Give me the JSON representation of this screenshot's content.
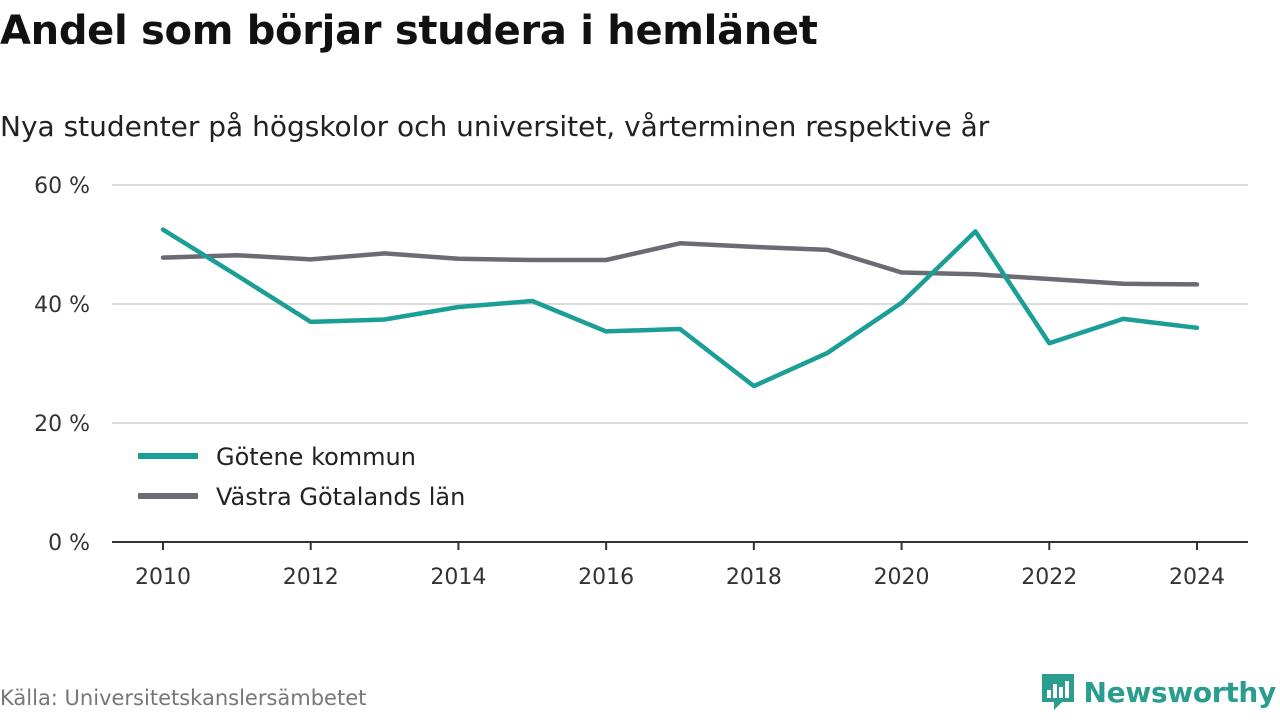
{
  "title": "Andel som börjar studera i hemlänet",
  "subtitle": "Nya studenter på högskolor och universitet, vårterminen respektive år",
  "source": "Källa: Universitetskanslersämbetet",
  "brand": {
    "name": "Newsworthy",
    "icon": "newsworthy-logo-icon",
    "color": "#2a9d8f"
  },
  "chart_data": {
    "type": "line",
    "title": "Andel som börjar studera i hemlänet",
    "subtitle": "Nya studenter på högskolor och universitet, vårterminen respektive år",
    "x": [
      2010,
      2011,
      2012,
      2013,
      2014,
      2015,
      2016,
      2017,
      2018,
      2019,
      2020,
      2021,
      2022,
      2023,
      2024
    ],
    "x_ticks": [
      "2010",
      "2012",
      "2014",
      "2016",
      "2018",
      "2020",
      "2022",
      "2024"
    ],
    "y_ticks": [
      "0 %",
      "20 %",
      "40 %",
      "60 %"
    ],
    "ylim": [
      0,
      60
    ],
    "grid": true,
    "legend_position": "bottom-left",
    "series": [
      {
        "name": "Götene kommun",
        "color": "#1a9e96",
        "values": [
          52.5,
          44.8,
          37.0,
          37.4,
          39.5,
          40.5,
          35.4,
          35.8,
          26.2,
          31.8,
          40.2,
          52.2,
          33.4,
          37.5,
          36.0
        ]
      },
      {
        "name": "Västra Götalands län",
        "color": "#6b6b73",
        "values": [
          47.8,
          48.2,
          47.5,
          48.5,
          47.6,
          47.4,
          47.4,
          50.2,
          49.6,
          49.1,
          45.3,
          45.0,
          44.2,
          43.4,
          43.3
        ]
      }
    ]
  }
}
